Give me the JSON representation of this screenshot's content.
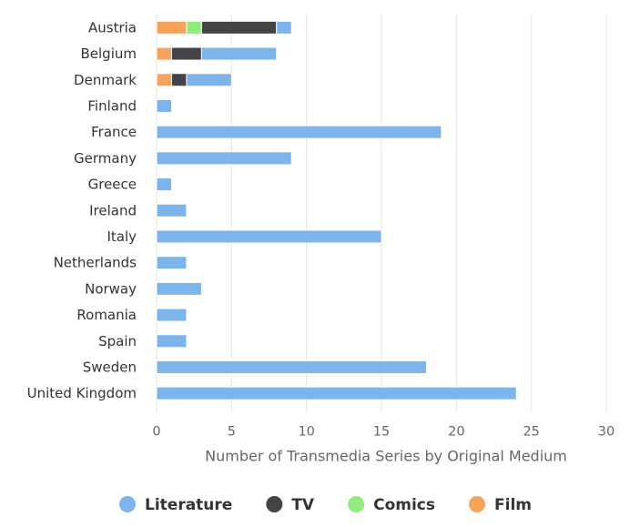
{
  "chart_data": {
    "type": "bar",
    "orientation": "horizontal",
    "stacked": true,
    "categories": [
      "Austria",
      "Belgium",
      "Denmark",
      "Finland",
      "France",
      "Germany",
      "Greece",
      "Ireland",
      "Italy",
      "Netherlands",
      "Norway",
      "Romania",
      "Spain",
      "Sweden",
      "United Kingdom"
    ],
    "stack_order": [
      "Film",
      "Comics",
      "TV",
      "Literature"
    ],
    "series": [
      {
        "name": "Literature",
        "color": "#7cb5ec",
        "values": [
          1,
          5,
          3,
          1,
          19,
          9,
          1,
          2,
          15,
          2,
          3,
          2,
          2,
          18,
          24
        ]
      },
      {
        "name": "TV",
        "color": "#434348",
        "values": [
          5,
          2,
          1,
          0,
          0,
          0,
          0,
          0,
          0,
          0,
          0,
          0,
          0,
          0,
          0
        ]
      },
      {
        "name": "Comics",
        "color": "#90ed7d",
        "values": [
          1,
          0,
          0,
          0,
          0,
          0,
          0,
          0,
          0,
          0,
          0,
          0,
          0,
          0,
          0
        ]
      },
      {
        "name": "Film",
        "color": "#f7a35c",
        "values": [
          2,
          1,
          1,
          0,
          0,
          0,
          0,
          0,
          0,
          0,
          0,
          0,
          0,
          0,
          0
        ]
      }
    ],
    "xlabel": "Number of Transmedia Series by Original Medium",
    "xlim": [
      0,
      30
    ],
    "xticks": [
      "0",
      "5",
      "10",
      "15",
      "20",
      "25",
      "30"
    ],
    "grid": true,
    "legend_position": "bottom",
    "legend": [
      "Literature",
      "TV",
      "Comics",
      "Film"
    ]
  }
}
